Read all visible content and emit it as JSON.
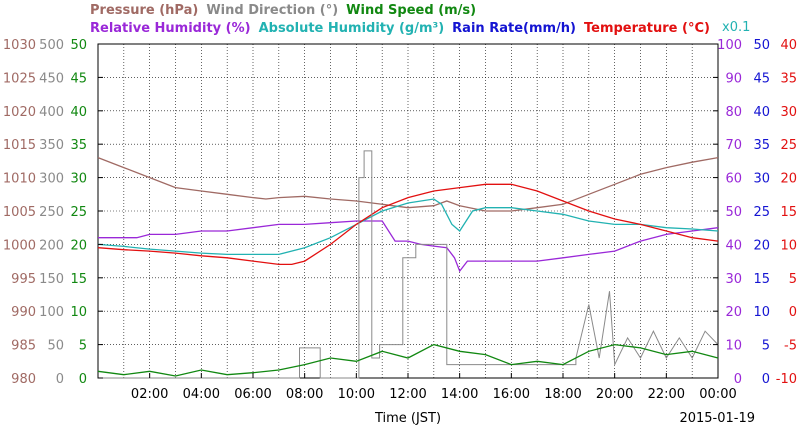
{
  "chart_data": {
    "type": "line",
    "title_line1": [
      {
        "text": "Pressure (hPa)",
        "color": "#a06a64"
      },
      {
        "text": "Wind Direction (°)",
        "color": "#8a8a8a"
      },
      {
        "text": "Wind Speed (m/s)",
        "color": "#118811"
      }
    ],
    "title_line2": [
      {
        "text": "Relative Humidity (%)",
        "color": "#9a28d8"
      },
      {
        "text": "Absolute Humidity (g/m³)",
        "color": "#22b2b2"
      },
      {
        "text": "Rain Rate(mm/h)",
        "color": "#1414d2"
      },
      {
        "text": "Temperature (°C)",
        "color": "#e21010"
      }
    ],
    "abs_humidity_note": {
      "text": "x0.1",
      "color": "#22b2b2"
    },
    "xlabel": "Time (JST)",
    "date": "2015-01-19",
    "x_range_hours": [
      0,
      24
    ],
    "x_tick_labels": [
      "02:00",
      "04:00",
      "06:00",
      "08:00",
      "10:00",
      "12:00",
      "14:00",
      "16:00",
      "18:00",
      "20:00",
      "22:00",
      "00:00"
    ],
    "axes": {
      "pressure": {
        "ylim": [
          980,
          1030
        ],
        "ticks": [
          "980",
          "985",
          "990",
          "995",
          "1000",
          "1005",
          "1010",
          "1015",
          "1020",
          "1025",
          "1030"
        ],
        "color": "#a06a64",
        "side": "left"
      },
      "wind_direction": {
        "ylim": [
          0,
          500
        ],
        "ticks": [
          "0",
          "50",
          "100",
          "150",
          "200",
          "250",
          "300",
          "350",
          "400",
          "450",
          "500"
        ],
        "color": "#8a8a8a",
        "side": "left"
      },
      "wind_speed": {
        "ylim": [
          0,
          50
        ],
        "ticks": [
          "0",
          "5",
          "10",
          "15",
          "20",
          "25",
          "30",
          "35",
          "40",
          "45",
          "50"
        ],
        "color": "#118811",
        "side": "left"
      },
      "relative_humidity": {
        "ylim": [
          0,
          100
        ],
        "ticks": [
          "0",
          "10",
          "20",
          "30",
          "40",
          "50",
          "60",
          "70",
          "80",
          "90",
          "100"
        ],
        "color": "#9a28d8",
        "side": "right"
      },
      "rain_rate": {
        "ylim": [
          0,
          50
        ],
        "ticks": [
          "0",
          "5",
          "10",
          "15",
          "20",
          "25",
          "30",
          "35",
          "40",
          "45",
          "50"
        ],
        "color": "#1414d2",
        "side": "right"
      },
      "temperature": {
        "ylim": [
          -10,
          40
        ],
        "ticks": [
          "-10",
          "-5",
          "0",
          "5",
          "10",
          "15",
          "20",
          "25",
          "30",
          "35",
          "40"
        ],
        "color": "#e21010",
        "side": "right"
      }
    },
    "grid": true,
    "series": [
      {
        "name": "Pressure (hPa)",
        "axis": "pressure",
        "color": "#a06a64",
        "x": [
          0,
          1,
          2,
          3,
          4,
          5,
          6,
          6.5,
          7,
          8,
          9,
          10,
          11,
          12,
          13,
          13.5,
          14,
          15,
          16,
          17,
          18,
          19,
          20,
          21,
          22,
          23,
          24
        ],
        "y": [
          1013,
          1011.5,
          1010,
          1008.5,
          1008,
          1007.5,
          1007,
          1006.8,
          1007,
          1007.2,
          1006.8,
          1006.5,
          1006,
          1005.5,
          1005.8,
          1006.5,
          1005.8,
          1005,
          1005,
          1005.5,
          1006,
          1007.5,
          1009,
          1010.5,
          1011.5,
          1012.3,
          1013
        ]
      },
      {
        "name": "Relative Humidity (%)",
        "axis": "relative_humidity",
        "color": "#9a28d8",
        "x": [
          0,
          1.5,
          2,
          3,
          4,
          5,
          6,
          7,
          8,
          9,
          10,
          11,
          11.5,
          12,
          12.5,
          13,
          13.5,
          13.8,
          14,
          14.3,
          15,
          16,
          17,
          18,
          19,
          20,
          21,
          22,
          23,
          24
        ],
        "y": [
          42,
          42,
          43,
          43,
          44,
          44,
          45,
          46,
          46,
          46.5,
          47,
          47,
          41,
          41,
          40,
          39.5,
          39,
          36,
          32,
          35,
          35,
          35,
          35,
          36,
          37,
          38,
          41,
          43,
          44,
          45
        ]
      },
      {
        "name": "Absolute Humidity (g/m³)",
        "axis": "pressure_scaled_abs",
        "color": "#22b2b2",
        "x": [
          0,
          1,
          2,
          3,
          4,
          5,
          6,
          7,
          8,
          9,
          10,
          11,
          12,
          13,
          13.3,
          13.7,
          14,
          14.5,
          15,
          16,
          17,
          18,
          19,
          20,
          21,
          22,
          23,
          24
        ],
        "y": [
          20,
          19.7,
          19.3,
          19,
          18.7,
          18.5,
          18.5,
          18.5,
          19.5,
          21,
          23,
          25,
          26.2,
          26.8,
          26,
          23,
          22,
          25,
          25.5,
          25.5,
          25,
          24.5,
          23.5,
          23,
          23,
          22.5,
          22.3,
          22
        ]
      },
      {
        "name": "Temperature (°C)",
        "axis": "temperature",
        "color": "#e21010",
        "x": [
          0,
          1,
          2,
          3,
          4,
          5,
          6,
          7,
          7.5,
          8,
          9,
          10,
          11,
          12,
          13,
          14,
          15,
          16,
          17,
          18,
          19,
          20,
          21,
          22,
          23,
          24
        ],
        "y": [
          9.5,
          9.2,
          9,
          8.7,
          8.3,
          8,
          7.5,
          7,
          7,
          7.5,
          10,
          13,
          15.5,
          17,
          18,
          18.5,
          19,
          19,
          18,
          16.5,
          15,
          13.8,
          13,
          12,
          11,
          10.5
        ]
      },
      {
        "name": "Wind Direction (°)",
        "axis": "wind_direction",
        "color": "#8a8a8a",
        "step": true,
        "x": [
          0,
          7.8,
          7.8,
          8.6,
          8.6,
          10.1,
          10.1,
          10.3,
          10.3,
          10.6,
          10.6,
          10.9,
          10.9,
          11.8,
          11.8,
          12.3,
          12.3,
          13.5,
          13.5,
          15.5,
          15.5,
          18.5,
          18.5,
          19,
          19.4,
          19.8,
          20,
          20.5,
          21,
          21.5,
          22,
          22.5,
          23,
          23.5,
          24
        ],
        "y": [
          0,
          0,
          45,
          45,
          0,
          0,
          300,
          300,
          340,
          340,
          30,
          30,
          50,
          50,
          180,
          180,
          200,
          200,
          20,
          20,
          20,
          20,
          30,
          110,
          30,
          130,
          20,
          60,
          30,
          70,
          30,
          60,
          30,
          70,
          50
        ]
      },
      {
        "name": "Wind Speed (m/s)",
        "axis": "wind_speed",
        "color": "#118811",
        "x": [
          0,
          1,
          2,
          3,
          4,
          5,
          6,
          7,
          8,
          9,
          10,
          11,
          12,
          13,
          14,
          15,
          16,
          17,
          18,
          19,
          20,
          21,
          22,
          23,
          24
        ],
        "y": [
          1,
          0.5,
          1,
          0.3,
          1.2,
          0.5,
          0.8,
          1.2,
          2,
          3,
          2.5,
          4,
          3,
          5,
          4,
          3.5,
          2,
          2.5,
          2,
          4,
          5,
          4.5,
          3.5,
          4,
          3
        ]
      }
    ]
  }
}
